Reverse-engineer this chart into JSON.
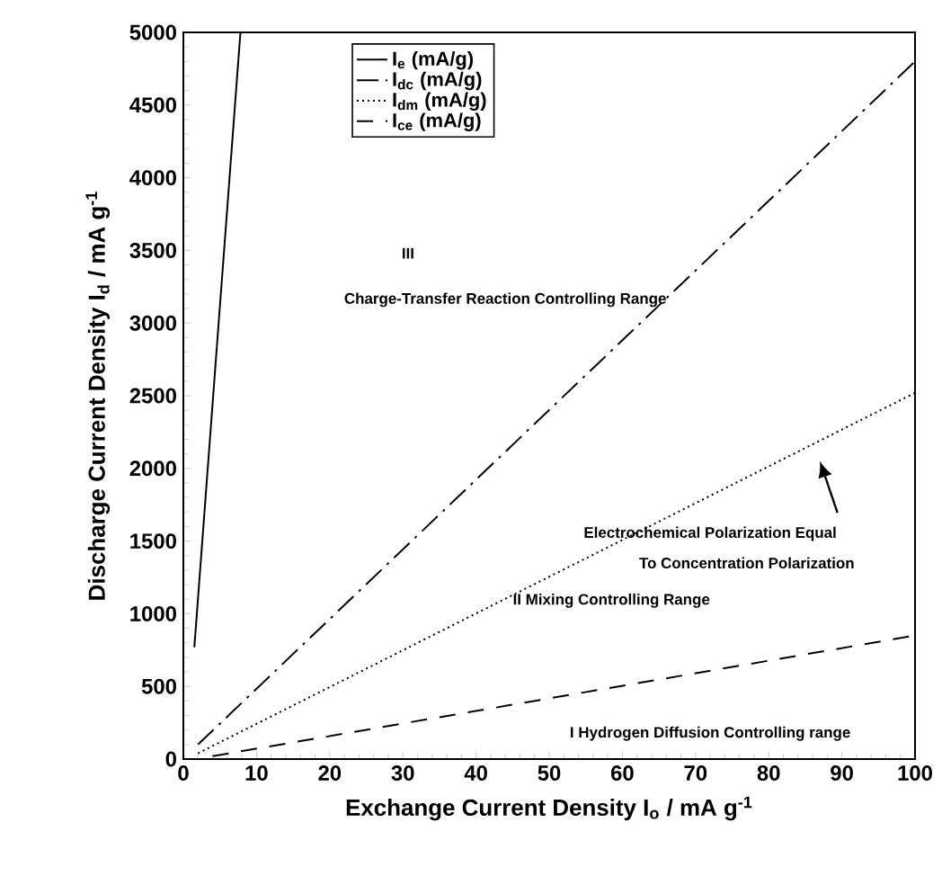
{
  "chart_data": {
    "type": "line",
    "xlabel": "Exchange Current Density I$_{o}$  / mA g$^{-1}$",
    "ylabel": "Discharge Current Density I$_{d}$  / mA g$^{-1}$",
    "xlim": [
      0,
      100
    ],
    "xticks": [
      0,
      10,
      20,
      30,
      40,
      50,
      60,
      70,
      80,
      90,
      100
    ],
    "ylim": [
      0,
      5000
    ],
    "yticks": [
      0,
      500,
      1000,
      1500,
      2000,
      2500,
      3000,
      3500,
      4000,
      4500,
      5000
    ],
    "legend": "top left",
    "grid": false,
    "series": [
      {
        "name": "I$_{e}$ (mA/g)",
        "color": "#000000",
        "line_style": "solid",
        "x": [
          1.5,
          7.8
        ],
        "values": [
          770,
          5000
        ]
      },
      {
        "name": "I$_{dc}$ (mA/g)",
        "color": "#000000",
        "line_style": "dashdot",
        "x": [
          2,
          100
        ],
        "values": [
          100,
          4800
        ]
      },
      {
        "name": "I$_{dm}$ (mA/g)",
        "color": "#000000",
        "line_style": "dotted",
        "x": [
          2,
          100
        ],
        "values": [
          40,
          2520
        ]
      },
      {
        "name": "I$_{ce}$ (mA/g)",
        "color": "#000000",
        "line_style": "dashed",
        "x": [
          4,
          100
        ],
        "values": [
          20,
          850
        ]
      }
    ],
    "annotations": [
      "III",
      "Charge-Transfer Reaction Controlling Range",
      "Electrochemical Polarization Equal",
      "To Concentration Polarization",
      "II Mixing Controlling Range",
      "I Hydrogen Diffusion Controlling range"
    ]
  }
}
